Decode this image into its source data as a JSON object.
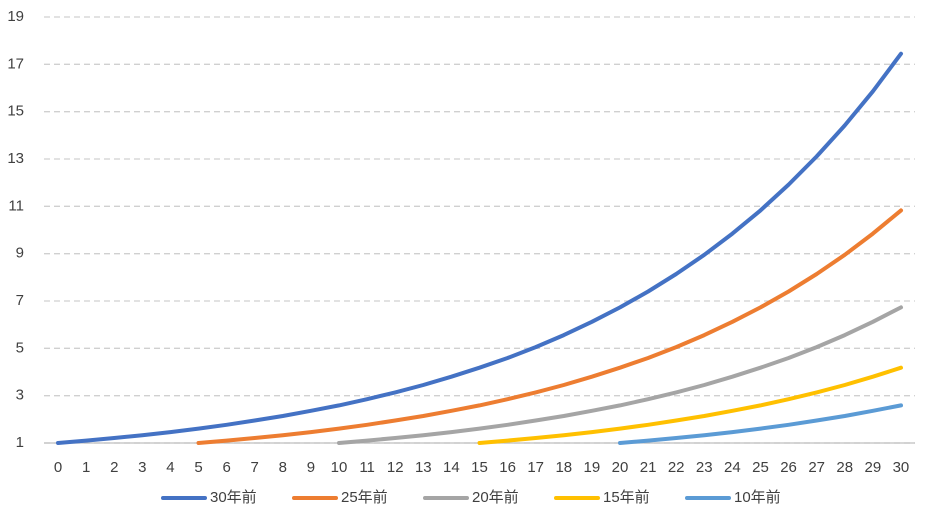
{
  "chart_data": {
    "type": "line",
    "categories": [
      0,
      1,
      2,
      3,
      4,
      5,
      6,
      7,
      8,
      9,
      10,
      11,
      12,
      13,
      14,
      15,
      16,
      17,
      18,
      19,
      20,
      21,
      22,
      23,
      24,
      25,
      26,
      27,
      28,
      29,
      30
    ],
    "series": [
      {
        "name": "30年前",
        "color": "#4472c4",
        "values": [
          1,
          1.1,
          1.21,
          1.33,
          1.46,
          1.61,
          1.77,
          1.95,
          2.14,
          2.36,
          2.59,
          2.85,
          3.14,
          3.45,
          3.8,
          4.18,
          4.59,
          5.05,
          5.56,
          6.12,
          6.73,
          7.4,
          8.14,
          8.95,
          9.85,
          10.83,
          11.92,
          13.11,
          14.42,
          15.86,
          17.45
        ]
      },
      {
        "name": "25年前",
        "color": "#ed7d31",
        "values": [
          null,
          null,
          null,
          null,
          null,
          1,
          1.1,
          1.21,
          1.33,
          1.46,
          1.61,
          1.77,
          1.95,
          2.14,
          2.36,
          2.59,
          2.85,
          3.14,
          3.45,
          3.8,
          4.18,
          4.59,
          5.05,
          5.56,
          6.12,
          6.73,
          7.4,
          8.14,
          8.95,
          9.85,
          10.83
        ]
      },
      {
        "name": "20年前",
        "color": "#a5a5a5",
        "values": [
          null,
          null,
          null,
          null,
          null,
          null,
          null,
          null,
          null,
          null,
          1,
          1.1,
          1.21,
          1.33,
          1.46,
          1.61,
          1.77,
          1.95,
          2.14,
          2.36,
          2.59,
          2.85,
          3.14,
          3.45,
          3.8,
          4.18,
          4.59,
          5.05,
          5.56,
          6.12,
          6.73
        ]
      },
      {
        "name": "15年前",
        "color": "#ffc000",
        "values": [
          null,
          null,
          null,
          null,
          null,
          null,
          null,
          null,
          null,
          null,
          null,
          null,
          null,
          null,
          null,
          1,
          1.1,
          1.21,
          1.33,
          1.46,
          1.61,
          1.77,
          1.95,
          2.14,
          2.36,
          2.59,
          2.85,
          3.14,
          3.45,
          3.8,
          4.18
        ]
      },
      {
        "name": "10年前",
        "color": "#5b9bd5",
        "values": [
          null,
          null,
          null,
          null,
          null,
          null,
          null,
          null,
          null,
          null,
          null,
          null,
          null,
          null,
          null,
          null,
          null,
          null,
          null,
          null,
          1,
          1.1,
          1.21,
          1.33,
          1.46,
          1.61,
          1.77,
          1.95,
          2.14,
          2.36,
          2.59
        ]
      }
    ],
    "ylim": [
      1,
      19
    ],
    "yticks": [
      1,
      3,
      5,
      7,
      9,
      11,
      13,
      15,
      17,
      19
    ],
    "grid": true,
    "legend": "bottom"
  }
}
